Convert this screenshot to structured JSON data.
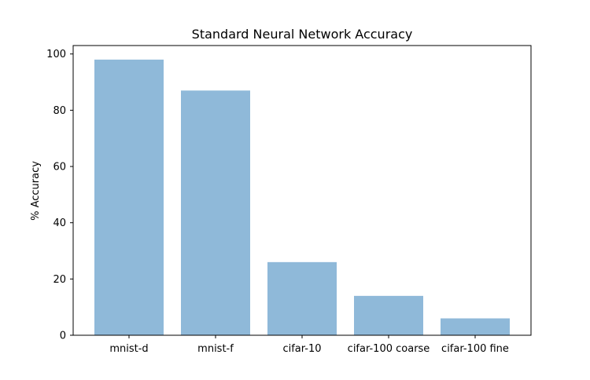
{
  "chart_data": {
    "type": "bar",
    "title": "Standard Neural Network Accuracy",
    "xlabel": "",
    "ylabel": "% Accuracy",
    "categories": [
      "mnist-d",
      "mnist-f",
      "cifar-10",
      "cifar-100 coarse",
      "cifar-100 fine"
    ],
    "values": [
      98,
      87,
      26,
      14,
      6
    ],
    "ylim": [
      0,
      103
    ],
    "yticks": [
      0,
      20,
      40,
      60,
      80,
      100
    ],
    "bar_color": "#8fb9d9",
    "grid": false,
    "legend": "none"
  }
}
